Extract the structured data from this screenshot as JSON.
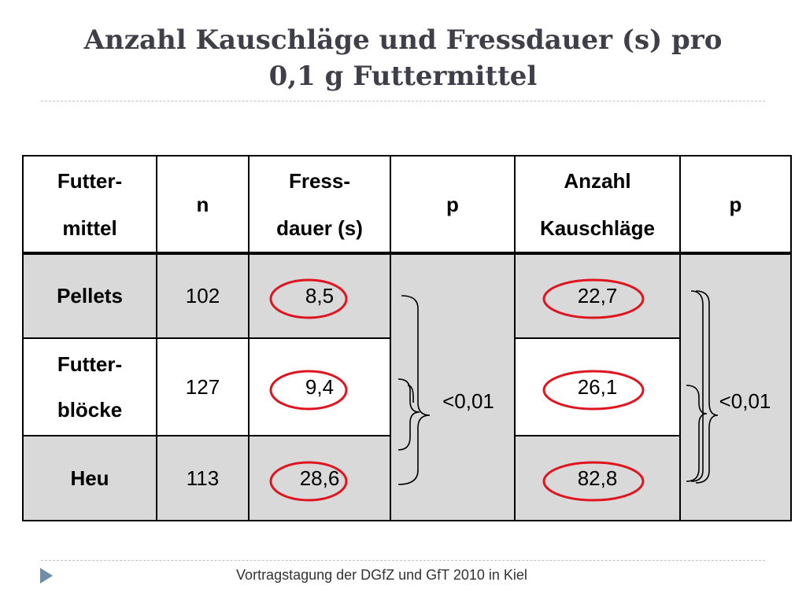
{
  "slide": {
    "title_line1": "Anzahl Kauschläge und Fressdauer (s) pro",
    "title_line2": "0,1 g Futtermittel",
    "footer": "Vortragstagung der DGfZ und GfT 2010 in Kiel"
  },
  "table": {
    "headers": [
      {
        "line1": "Futter-",
        "line2": "mittel"
      },
      {
        "line1": "n",
        "line2": ""
      },
      {
        "line1": "Fress-",
        "line2": "dauer (s)"
      },
      {
        "line1": "p",
        "line2": ""
      },
      {
        "line1": "Anzahl",
        "line2": "Kauschläge"
      },
      {
        "line1": "p",
        "line2": ""
      }
    ],
    "rows": [
      {
        "label_line1": "Pellets",
        "label_line2": "",
        "n": "102",
        "fressdauer": "8,5",
        "kauschlaege": "22,7"
      },
      {
        "label_line1": "Futter-",
        "label_line2": "blöcke",
        "n": "127",
        "fressdauer": "9,4",
        "kauschlaege": "26,1"
      },
      {
        "label_line1": "Heu",
        "label_line2": "",
        "n": "113",
        "fressdauer": "28,6",
        "kauschlaege": "82,8"
      }
    ],
    "p_fressdauer": "<0,01",
    "p_kauschlaege": "<0,01"
  },
  "colors": {
    "title": "#3f3f49",
    "highlight_circle": "#e0141e",
    "shaded_row": "#d9d9d9",
    "footer_arrow": "#6e8fa7"
  }
}
